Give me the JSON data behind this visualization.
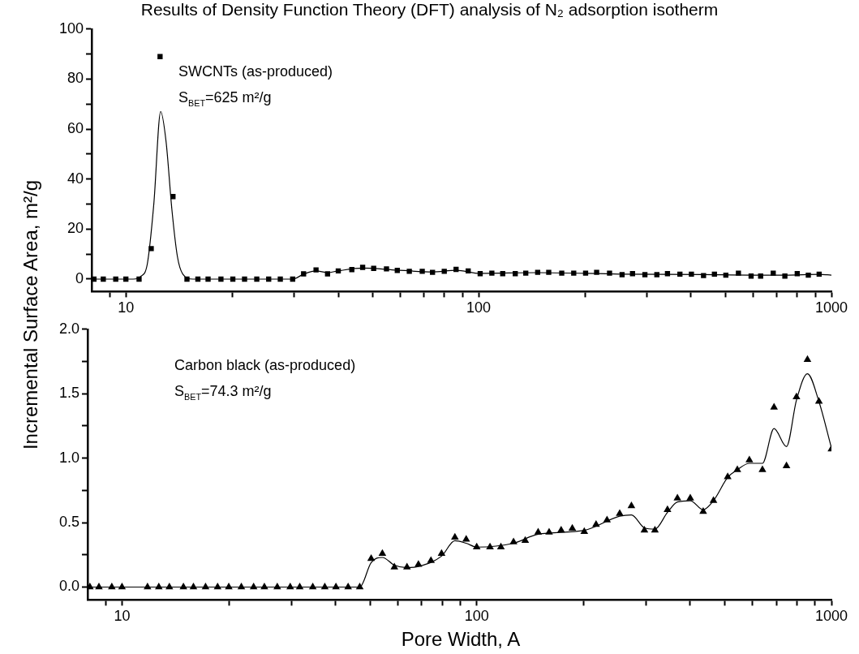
{
  "chart_data": [
    {
      "type": "scatter",
      "title": "Results of Density Function Theory (DFT) analysis of N₂ adsorption isotherm",
      "ylabel": "Incremental Surface Area, m²/g",
      "log": "x",
      "grid": false,
      "legend": false,
      "annotations": [
        "SWCNTs (as-produced)",
        "S$_{BET}$=625 m²/g"
      ],
      "xlim": [
        8,
        1000
      ],
      "xticks": [
        {
          "value": 9,
          "label": null
        },
        10,
        {
          "value": 20,
          "label": null
        },
        {
          "value": 30,
          "label": null
        },
        {
          "value": 40,
          "label": null
        },
        {
          "value": 50,
          "label": null
        },
        {
          "value": 60,
          "label": null
        },
        {
          "value": 70,
          "label": null
        },
        {
          "value": 80,
          "label": null
        },
        {
          "value": 90,
          "label": null
        },
        100,
        {
          "value": 200,
          "label": null
        },
        {
          "value": 300,
          "label": null
        },
        {
          "value": 400,
          "label": null
        },
        {
          "value": 500,
          "label": null
        },
        {
          "value": 600,
          "label": null
        },
        {
          "value": 700,
          "label": null
        },
        {
          "value": 800,
          "label": null
        },
        {
          "value": 900,
          "label": null
        },
        1000
      ],
      "ylim": [
        -5,
        100
      ],
      "yticks": [
        0,
        {
          "value": 10,
          "label": null
        },
        20,
        {
          "value": 30,
          "label": null
        },
        40,
        {
          "value": 50,
          "label": null
        },
        60,
        {
          "value": 70,
          "label": null
        },
        80,
        {
          "value": 90,
          "label": null
        },
        100
      ],
      "series": [
        {
          "marker": "square",
          "color": "#000000",
          "x": [
            8.12,
            8.63,
            9.36,
            10.0,
            10.9,
            11.8,
            12.5,
            13.6,
            14.9,
            16.0,
            17.1,
            18.6,
            20.1,
            21.7,
            23.5,
            25.4,
            27.4,
            29.7,
            31.9,
            34.6,
            37.3,
            40.0,
            43.7,
            46.9,
            50.4,
            54.8,
            58.8,
            63.6,
            69.2,
            74.0,
            79.9,
            86.3,
            93.4,
            101,
            109,
            117,
            127,
            136,
            147,
            158,
            172,
            186,
            201,
            216,
            235,
            255,
            273,
            296,
            320,
            343,
            372,
            401,
            434,
            466,
            502,
            545,
            592,
            630,
            684,
            738,
            800,
            860,
            923
          ],
          "values": [
            0,
            0,
            0,
            0,
            0,
            12.2,
            89,
            33,
            0,
            0,
            0,
            0,
            0,
            0,
            0,
            0,
            0,
            0,
            2.1,
            3.7,
            2.1,
            3.3,
            3.8,
            4.7,
            4.3,
            4.1,
            3.5,
            3.1,
            3.1,
            2.7,
            3.1,
            3.9,
            3.3,
            2.2,
            2.4,
            2.2,
            2.2,
            2.4,
            2.7,
            2.7,
            2.4,
            2.4,
            2.4,
            2.7,
            2.4,
            1.8,
            2.2,
            1.8,
            1.8,
            2.2,
            2.0,
            2.0,
            1.4,
            2.0,
            1.6,
            2.4,
            1.2,
            1.2,
            2.4,
            1.2,
            2.2,
            1.6,
            2.0
          ]
        },
        {
          "type": "line",
          "marker": "none",
          "color": "#000000",
          "x": [
            8,
            10.5,
            11,
            11.5,
            12,
            12.55,
            13,
            13.5,
            14,
            14.5,
            15.5,
            29.7,
            31.9,
            34.6,
            37.3,
            40.0,
            46.9,
            58.8,
            74.0,
            86.3,
            101,
            147,
            255,
            434,
            592,
            738,
            923,
            1000
          ],
          "values": [
            0,
            0,
            1,
            6,
            30,
            67,
            55,
            28,
            9,
            2,
            0,
            0,
            2.0,
            3.3,
            2.6,
            3.3,
            4.4,
            3.6,
            2.9,
            3.5,
            2.3,
            2.6,
            2.0,
            1.8,
            1.6,
            1.6,
            1.9,
            1.6
          ]
        }
      ]
    },
    {
      "type": "scatter",
      "xlabel": "Pore Width, A",
      "log": "x",
      "grid": false,
      "legend": false,
      "annotations": [
        "Carbon black (as-produced)",
        "S$_{BET}$=74.3 m²/g"
      ],
      "xlim": [
        8,
        1000
      ],
      "xticks": [
        {
          "value": 9,
          "label": null
        },
        10,
        {
          "value": 20,
          "label": null
        },
        {
          "value": 30,
          "label": null
        },
        {
          "value": 40,
          "label": null
        },
        {
          "value": 50,
          "label": null
        },
        {
          "value": 60,
          "label": null
        },
        {
          "value": 70,
          "label": null
        },
        {
          "value": 80,
          "label": null
        },
        {
          "value": 90,
          "label": null
        },
        100,
        {
          "value": 200,
          "label": null
        },
        {
          "value": 300,
          "label": null
        },
        {
          "value": 400,
          "label": null
        },
        {
          "value": 500,
          "label": null
        },
        {
          "value": 600,
          "label": null
        },
        {
          "value": 700,
          "label": null
        },
        {
          "value": 800,
          "label": null
        },
        {
          "value": 900,
          "label": null
        },
        1000
      ],
      "ylim": [
        -0.1,
        2.0
      ],
      "yticks": [
        {
          "value": 0,
          "label": "0.0"
        },
        {
          "value": 0.25,
          "label": null
        },
        {
          "value": 0.5,
          "label": "0.5"
        },
        {
          "value": 0.75,
          "label": null
        },
        {
          "value": 1,
          "label": "1.0"
        },
        {
          "value": 1.25,
          "label": null
        },
        {
          "value": 1.5,
          "label": "1.5"
        },
        {
          "value": 1.75,
          "label": null
        },
        {
          "value": 2,
          "label": "2.0"
        }
      ],
      "series": [
        {
          "marker": "triangle",
          "color": "#000000",
          "x": [
            8.12,
            8.61,
            9.36,
            10.0,
            11.8,
            12.7,
            13.6,
            14.9,
            15.9,
            17.2,
            18.6,
            20.0,
            21.7,
            23.5,
            25.2,
            27.4,
            29.8,
            31.7,
            34.5,
            37.3,
            40.1,
            43.4,
            46.8,
            50.4,
            54.2,
            58.6,
            63.6,
            68.5,
            74.3,
            79.6,
            86.8,
            93.4,
            100,
            109,
            117,
            127,
            137,
            149,
            160,
            173,
            186,
            201,
            217,
            233,
            253,
            273,
            297,
            318,
            345,
            368,
            400,
            435,
            465,
            510,
            543,
            587,
            639,
            689,
            747,
            797,
            856,
            922,
            1000
          ],
          "values": [
            0,
            0,
            0,
            0,
            0,
            0,
            0,
            0,
            0,
            0,
            0,
            0,
            0,
            0,
            0,
            0,
            0,
            0,
            0,
            0,
            0,
            0,
            0,
            0.22,
            0.26,
            0.155,
            0.155,
            0.175,
            0.205,
            0.26,
            0.385,
            0.37,
            0.31,
            0.31,
            0.31,
            0.35,
            0.36,
            0.425,
            0.425,
            0.44,
            0.455,
            0.43,
            0.485,
            0.52,
            0.57,
            0.63,
            0.44,
            0.44,
            0.6,
            0.69,
            0.69,
            0.585,
            0.67,
            0.855,
            0.91,
            0.985,
            0.91,
            1.395,
            0.94,
            1.475,
            1.765,
            1.44,
            1.07
          ]
        },
        {
          "type": "line",
          "marker": "none",
          "color": "#000000",
          "x": [
            8,
            46.8,
            50.4,
            54.2,
            58.6,
            63.6,
            68.5,
            79.6,
            86.8,
            93.4,
            100,
            127,
            149,
            201,
            253,
            273,
            297,
            318,
            345,
            368,
            400,
            435,
            465,
            510,
            543,
            587,
            639,
            689,
            747,
            797,
            856,
            922,
            1000
          ],
          "values": [
            0,
            0,
            0.19,
            0.23,
            0.17,
            0.15,
            0.16,
            0.24,
            0.36,
            0.34,
            0.31,
            0.34,
            0.41,
            0.44,
            0.55,
            0.56,
            0.46,
            0.45,
            0.58,
            0.66,
            0.67,
            0.6,
            0.67,
            0.85,
            0.91,
            0.96,
            0.96,
            1.23,
            1.09,
            1.45,
            1.655,
            1.44,
            1.08
          ]
        }
      ]
    }
  ]
}
